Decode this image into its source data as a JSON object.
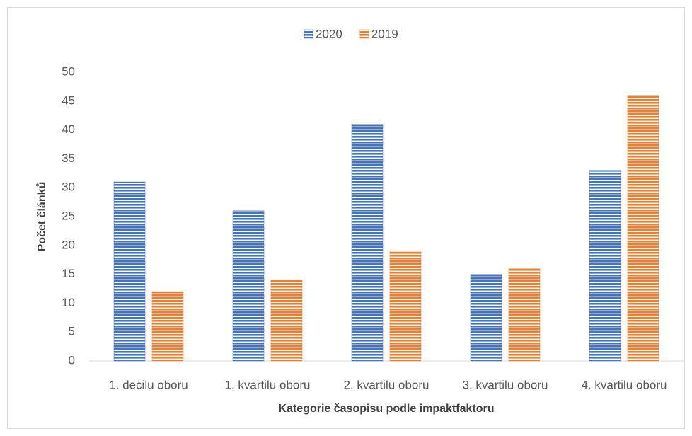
{
  "chart_data": {
    "type": "bar",
    "categories": [
      "1. decilu oboru",
      "1. kvartilu oboru",
      "2. kvartilu oboru",
      "3. kvartilu oboru",
      "4. kvartilu oboru"
    ],
    "series": [
      {
        "name": "2020",
        "color": "#4472c4",
        "values": [
          31,
          26,
          41,
          15,
          33
        ]
      },
      {
        "name": "2019",
        "color": "#ed7d31",
        "values": [
          12,
          14,
          19,
          16,
          46
        ]
      }
    ],
    "x_label": "Kategorie časopisu podle impaktfaktoru",
    "y_label": "Počet článků",
    "ylim": [
      0,
      50
    ],
    "yticks": [
      0,
      5,
      10,
      15,
      20,
      25,
      30,
      35,
      40,
      45,
      50
    ],
    "legend": "top"
  }
}
